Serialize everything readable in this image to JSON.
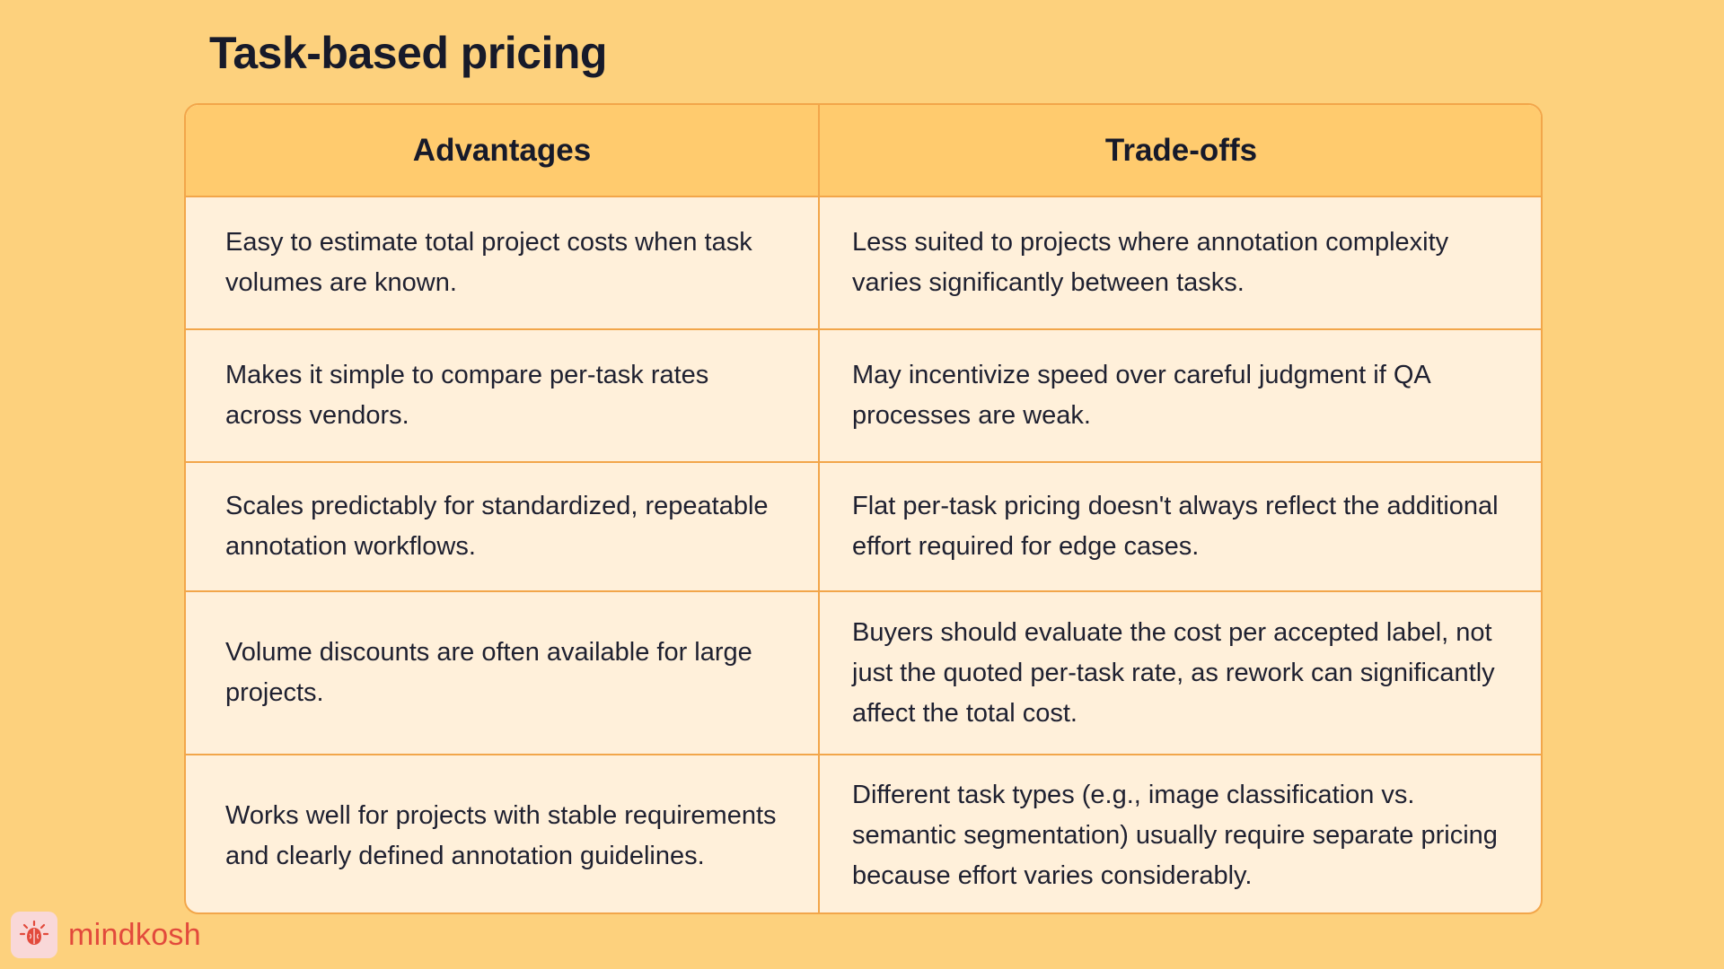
{
  "title": "Task-based pricing",
  "table": {
    "headers": [
      "Advantages",
      "Trade-offs"
    ],
    "rows": [
      {
        "advantage": "Easy to estimate total project costs when task volumes are known.",
        "tradeoff": "Less suited to projects where annotation complexity varies significantly between tasks."
      },
      {
        "advantage": "Makes it simple to compare per-task rates across vendors.",
        "tradeoff": "May incentivize speed over careful judgment if QA processes are weak."
      },
      {
        "advantage": "Scales predictably for standardized, repeatable annotation workflows.",
        "tradeoff": "Flat per-task pricing doesn't always reflect the additional effort required for edge cases."
      },
      {
        "advantage": "Volume discounts are often available for large projects.",
        "tradeoff": "Buyers should evaluate the cost per accepted label, not just the quoted per-task rate, as rework can significantly affect the total cost."
      },
      {
        "advantage": "Works well for projects with stable requirements and clearly defined annotation guidelines.",
        "tradeoff": "Different task types (e.g., image classification vs. semantic segmentation) usually require separate pricing because effort varies considerably."
      }
    ]
  },
  "brand": {
    "name": "mindkosh",
    "logo_icon": "brain-icon",
    "color": "#E24A3C"
  },
  "colors": {
    "background": "#FDD17D",
    "header_fill": "#FFCB6E",
    "cell_fill": "#FFF0DA",
    "border": "#F2A64A"
  }
}
